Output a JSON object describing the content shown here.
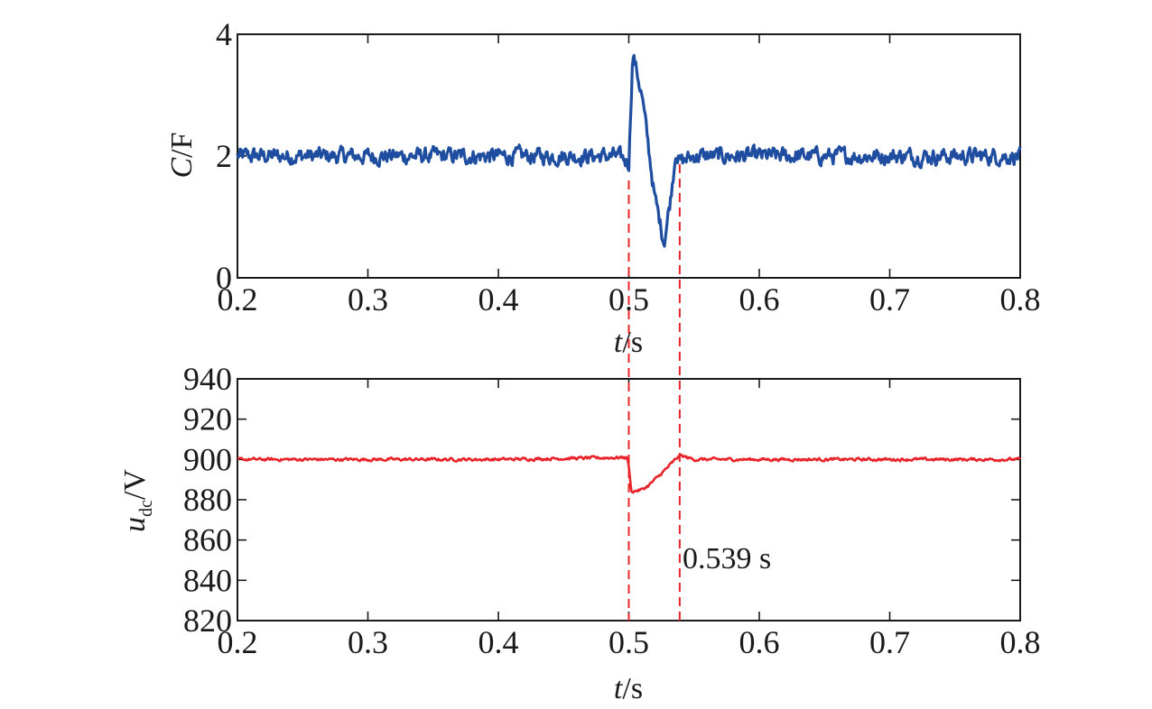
{
  "chart_data": [
    {
      "type": "line",
      "ylabel_main": "C",
      "ylabel_unit": "/F",
      "xlabel_main": "t",
      "xlabel_unit": "/s",
      "xlim": [
        0.2,
        0.8
      ],
      "ylim": [
        0,
        4
      ],
      "xticks": [
        "0.2",
        "0.3",
        "0.4",
        "0.5",
        "0.6",
        "0.7",
        "0.8"
      ],
      "yticks": [
        "0",
        "2",
        "4"
      ],
      "grid": false,
      "series": [
        {
          "color": "#1f4ea0",
          "x": [
            0.2,
            0.3,
            0.4,
            0.49,
            0.5,
            0.503,
            0.51,
            0.52,
            0.527,
            0.532,
            0.536,
            0.539,
            0.55,
            0.6,
            0.7,
            0.8
          ],
          "y": [
            2.0,
            2.0,
            2.0,
            2.0,
            1.9,
            3.7,
            3.0,
            1.3,
            0.6,
            1.3,
            2.1,
            1.9,
            2.0,
            2.0,
            2.0,
            2.0
          ],
          "noise": 0.15
        }
      ],
      "vlines": [
        0.5,
        0.539
      ]
    },
    {
      "type": "line",
      "ylabel_main": "u",
      "ylabel_sub": "dc",
      "ylabel_unit": "/V",
      "xlabel_main": "t",
      "xlabel_unit": "/s",
      "xlim": [
        0.2,
        0.8
      ],
      "ylim": [
        820,
        940
      ],
      "xticks": [
        "0.2",
        "0.3",
        "0.4",
        "0.5",
        "0.6",
        "0.7",
        "0.8"
      ],
      "yticks": [
        "820",
        "840",
        "860",
        "880",
        "900",
        "920",
        "940"
      ],
      "grid": false,
      "series": [
        {
          "color": "#e8242a",
          "x": [
            0.2,
            0.3,
            0.4,
            0.499,
            0.5,
            0.502,
            0.51,
            0.515,
            0.525,
            0.539,
            0.55,
            0.6,
            0.7,
            0.8
          ],
          "y": [
            900,
            900,
            900,
            901,
            896,
            884,
            885,
            887,
            893,
            902,
            900,
            900,
            900,
            900
          ],
          "noise": 0.8
        }
      ],
      "vlines": [
        0.5,
        0.539
      ],
      "annotation": "0.539 s"
    }
  ]
}
